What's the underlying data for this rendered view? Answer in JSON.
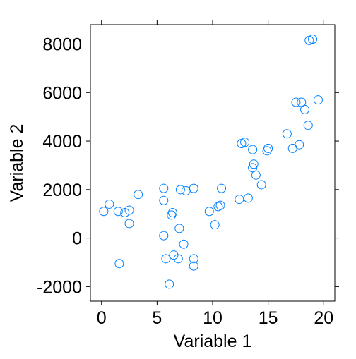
{
  "chart_data": {
    "type": "scatter",
    "title": "",
    "xlabel": "Variable 1",
    "ylabel": "Variable 2",
    "xlim": [
      -1,
      21
    ],
    "ylim": [
      -2600,
      8800
    ],
    "xticks": [
      0,
      5,
      10,
      15,
      20
    ],
    "yticks": [
      -2000,
      0,
      2000,
      4000,
      6000,
      8000
    ],
    "xtick_labels": [
      "0",
      "5",
      "10",
      "15",
      "20"
    ],
    "ytick_labels": [
      "-2000",
      "0",
      "2000",
      "4000",
      "6000",
      "8000"
    ],
    "grid": false,
    "marker": "open-circle",
    "point_color": "#0080ff",
    "points": [
      {
        "x": 0.2,
        "y": 1100
      },
      {
        "x": 0.7,
        "y": 1400
      },
      {
        "x": 1.5,
        "y": 1100
      },
      {
        "x": 1.6,
        "y": -1050
      },
      {
        "x": 2.1,
        "y": 1050
      },
      {
        "x": 2.5,
        "y": 1150
      },
      {
        "x": 2.5,
        "y": 600
      },
      {
        "x": 3.3,
        "y": 1800
      },
      {
        "x": 5.6,
        "y": 2050
      },
      {
        "x": 5.6,
        "y": 1550
      },
      {
        "x": 5.6,
        "y": 100
      },
      {
        "x": 5.8,
        "y": -850
      },
      {
        "x": 6.1,
        "y": -1900
      },
      {
        "x": 6.3,
        "y": 950
      },
      {
        "x": 6.4,
        "y": 1050
      },
      {
        "x": 6.5,
        "y": -700
      },
      {
        "x": 6.9,
        "y": -850
      },
      {
        "x": 7.0,
        "y": 400
      },
      {
        "x": 7.1,
        "y": 2000
      },
      {
        "x": 7.4,
        "y": -250
      },
      {
        "x": 7.6,
        "y": 1950
      },
      {
        "x": 8.3,
        "y": 2050
      },
      {
        "x": 8.3,
        "y": -850
      },
      {
        "x": 8.3,
        "y": -1150
      },
      {
        "x": 9.7,
        "y": 1100
      },
      {
        "x": 10.2,
        "y": 550
      },
      {
        "x": 10.5,
        "y": 1300
      },
      {
        "x": 10.7,
        "y": 1350
      },
      {
        "x": 10.8,
        "y": 2050
      },
      {
        "x": 12.4,
        "y": 1600
      },
      {
        "x": 12.6,
        "y": 3900
      },
      {
        "x": 12.9,
        "y": 3950
      },
      {
        "x": 13.2,
        "y": 1650
      },
      {
        "x": 13.6,
        "y": 2900
      },
      {
        "x": 13.6,
        "y": 3650
      },
      {
        "x": 13.7,
        "y": 3050
      },
      {
        "x": 13.9,
        "y": 2600
      },
      {
        "x": 14.4,
        "y": 2200
      },
      {
        "x": 14.9,
        "y": 3600
      },
      {
        "x": 15.0,
        "y": 3700
      },
      {
        "x": 16.7,
        "y": 4300
      },
      {
        "x": 17.2,
        "y": 3700
      },
      {
        "x": 17.5,
        "y": 5600
      },
      {
        "x": 17.8,
        "y": 3850
      },
      {
        "x": 18.0,
        "y": 5600
      },
      {
        "x": 18.3,
        "y": 5300
      },
      {
        "x": 18.6,
        "y": 4650
      },
      {
        "x": 18.7,
        "y": 8150
      },
      {
        "x": 19.0,
        "y": 8200
      },
      {
        "x": 19.5,
        "y": 5700
      }
    ]
  }
}
